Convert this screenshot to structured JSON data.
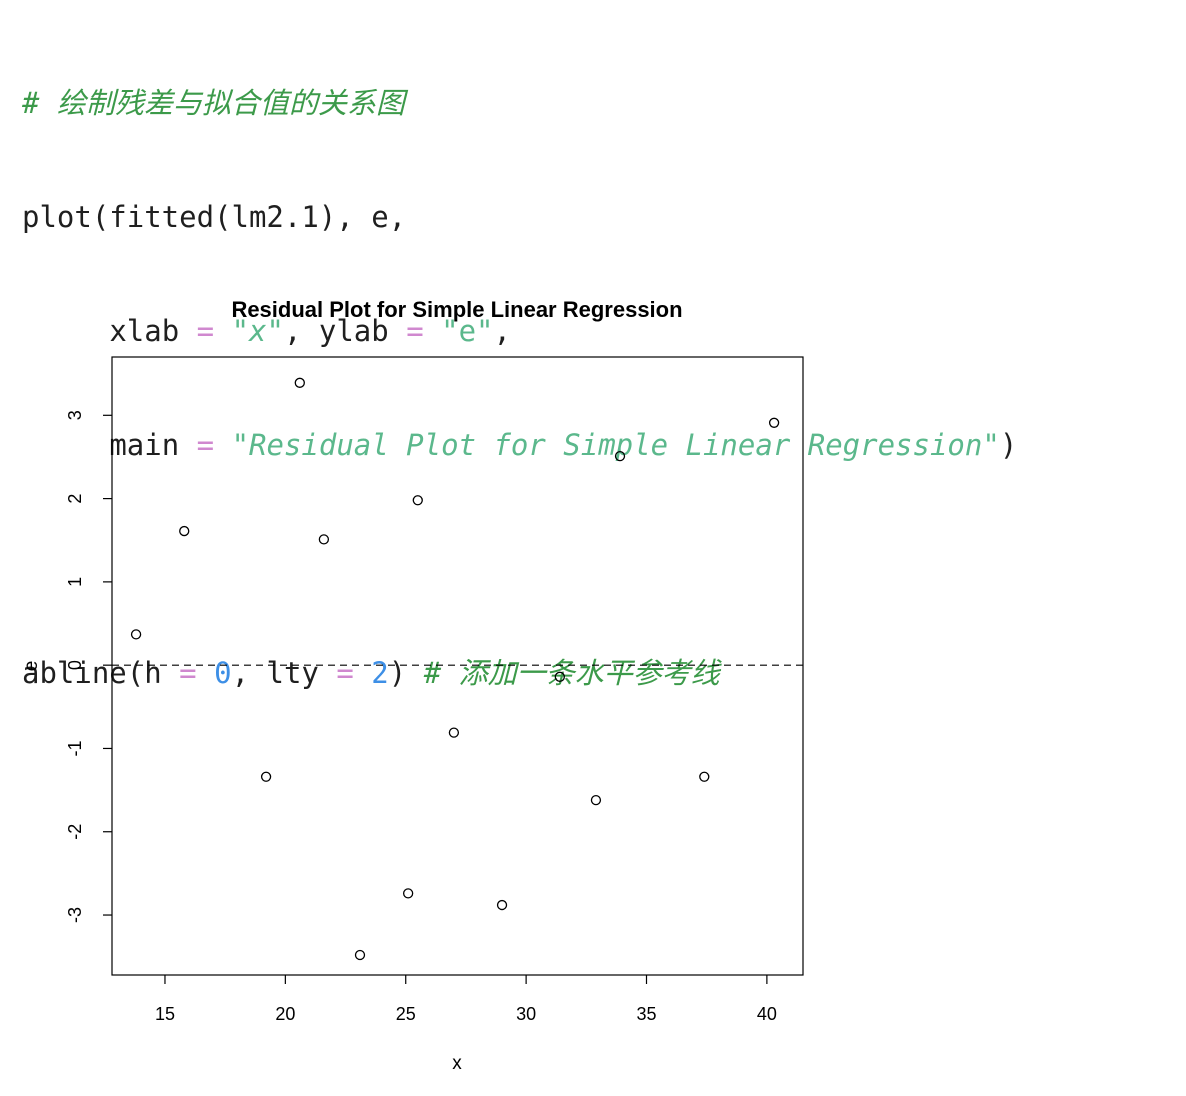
{
  "code": {
    "line1": {
      "comment": "# 绘制残差与拟合值的关系图"
    },
    "line2": {
      "text": "plot(fitted(lm2.1), e,"
    },
    "line3": {
      "indent": "     ",
      "k1": "xlab",
      "eq1": "=",
      "q1": "\"",
      "v1": "x",
      "q2": "\"",
      "sep": ", ",
      "k2": "ylab",
      "eq2": "=",
      "v2": "\"e\"",
      "end": ","
    },
    "line4": {
      "indent": "     ",
      "k1": "main",
      "eq1": "=",
      "q1": "\"",
      "v1": "Residual Plot for Simple Linear Regression",
      "q2": "\"",
      "end": ")"
    },
    "line6": {
      "fn": "abline(h",
      "eq1": "=",
      "n1": "0",
      "sep": ", lty",
      "eq2": "=",
      "n2": "2",
      "close": ")",
      "comment": "# 添加一条水平参考线"
    }
  },
  "chart_data": {
    "type": "scatter",
    "title": "Residual Plot for Simple Linear Regression",
    "xlabel": "x",
    "ylabel": "e",
    "xlim": [
      12.8,
      41.5
    ],
    "ylim": [
      -3.72,
      3.7
    ],
    "xticks": [
      15,
      20,
      25,
      30,
      35,
      40
    ],
    "yticks": [
      3,
      2,
      1,
      0,
      -1,
      -2,
      -3
    ],
    "marker": "open-circle",
    "hline": {
      "y": 0,
      "lty": 2
    },
    "points": [
      {
        "x": 13.8,
        "y": 0.37
      },
      {
        "x": 15.8,
        "y": 1.61
      },
      {
        "x": 19.2,
        "y": -1.34
      },
      {
        "x": 20.6,
        "y": 3.39
      },
      {
        "x": 21.6,
        "y": 1.51
      },
      {
        "x": 23.1,
        "y": -3.48
      },
      {
        "x": 25.1,
        "y": -2.74
      },
      {
        "x": 25.5,
        "y": 1.98
      },
      {
        "x": 27.0,
        "y": -0.81
      },
      {
        "x": 29.0,
        "y": -2.88
      },
      {
        "x": 31.4,
        "y": -0.14
      },
      {
        "x": 32.9,
        "y": -1.62
      },
      {
        "x": 33.9,
        "y": 2.51
      },
      {
        "x": 37.4,
        "y": -1.34
      },
      {
        "x": 40.3,
        "y": 2.91
      }
    ]
  }
}
